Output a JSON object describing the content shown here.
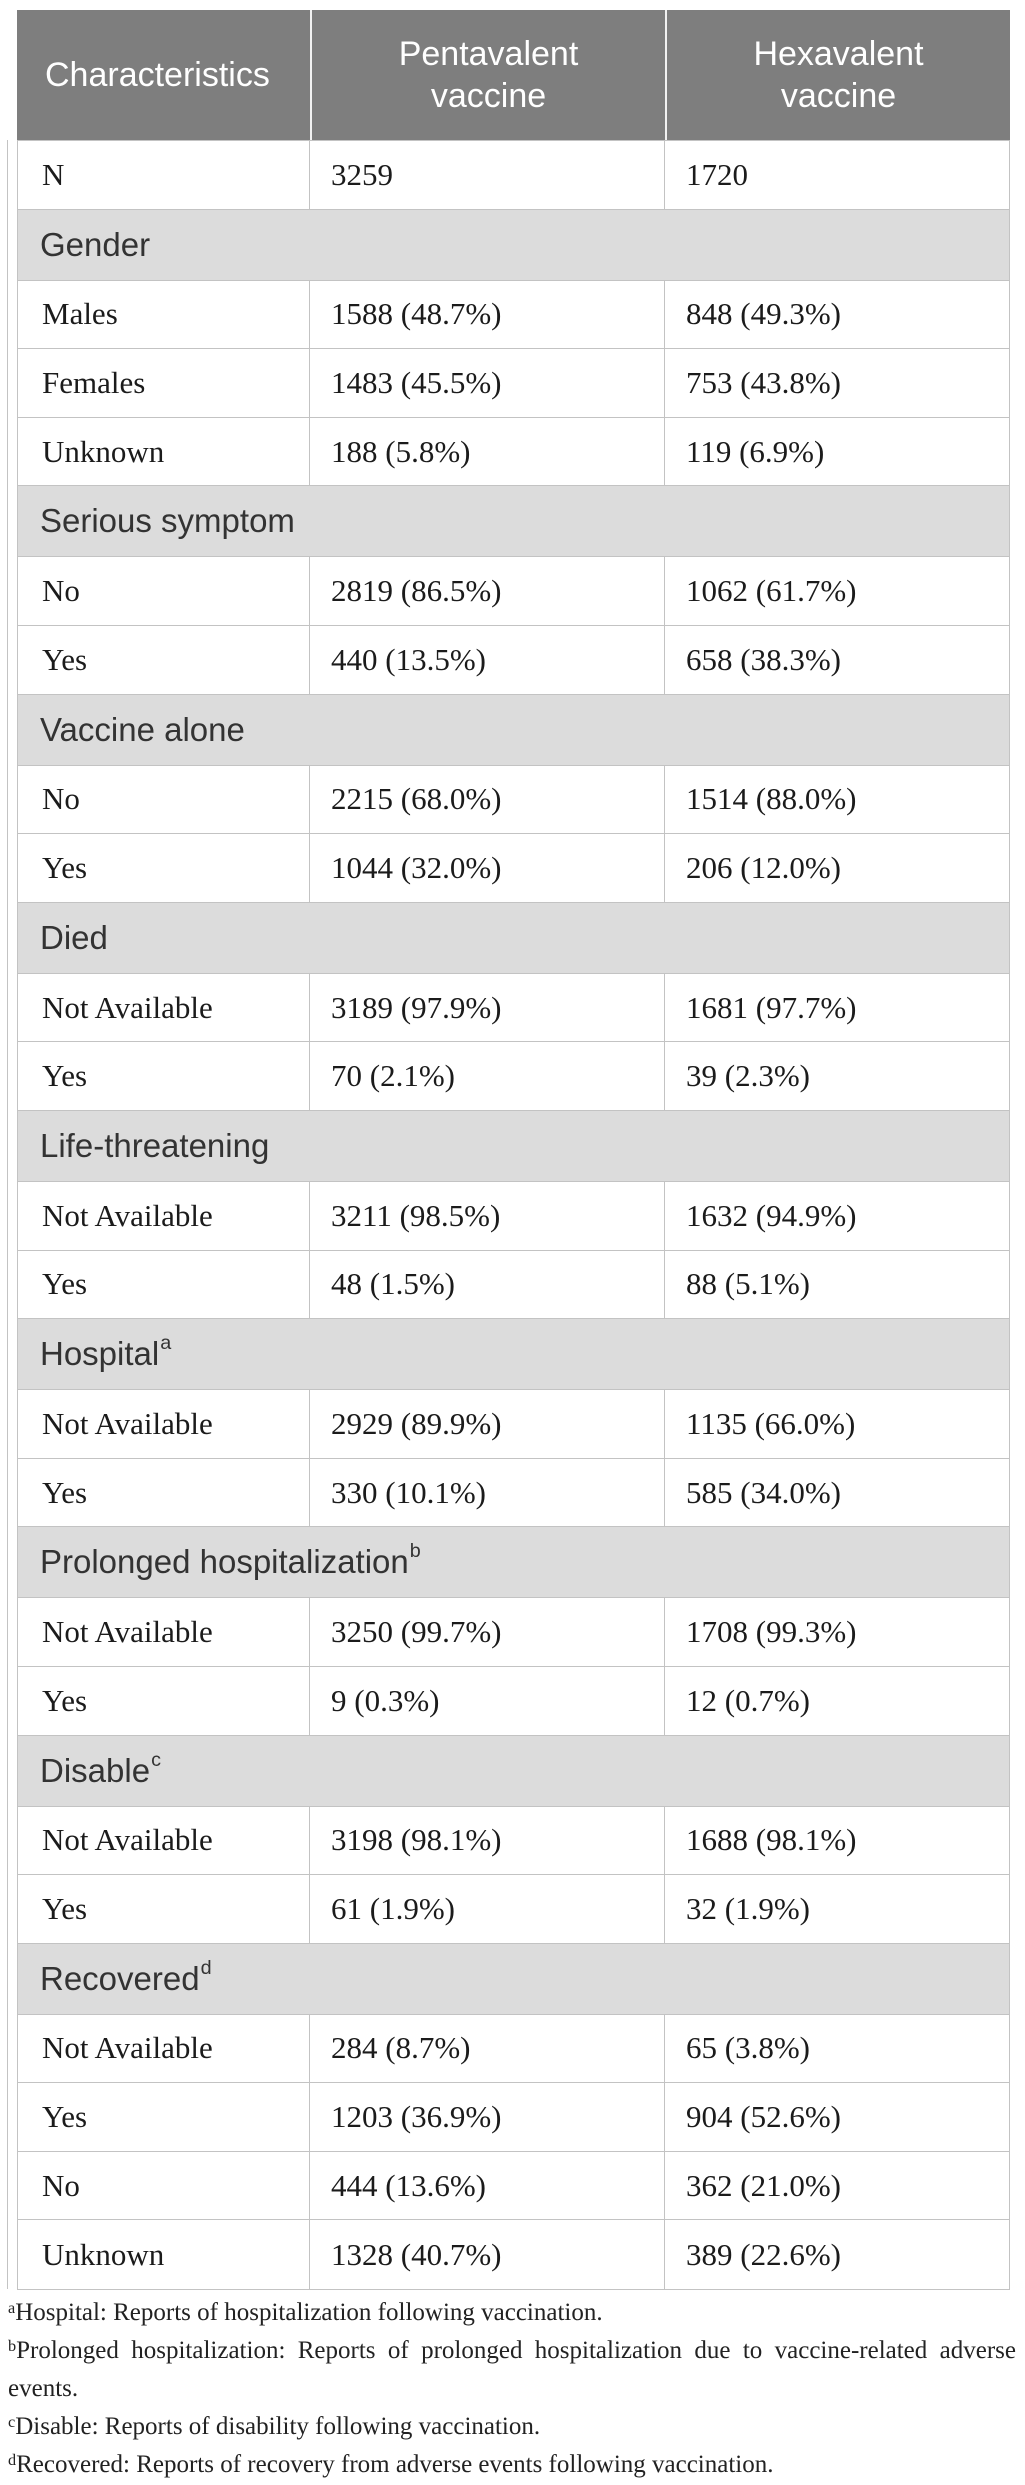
{
  "colors": {
    "header_bg": "#7e7e7e",
    "header_text": "#ffffff",
    "section_bg": "#dcdcdc",
    "border": "#c3c3c3",
    "body_text": "#1b1b1b"
  },
  "table": {
    "columns": [
      "Characteristics",
      "Pentavalent vaccine",
      "Hexavalent vaccine"
    ],
    "groups": [
      {
        "section": null,
        "rows": [
          [
            "N",
            "3259",
            "1720"
          ]
        ]
      },
      {
        "section": {
          "label": "Gender",
          "sup": ""
        },
        "rows": [
          [
            "Males",
            "1588 (48.7%)",
            "848 (49.3%)"
          ],
          [
            "Females",
            "1483 (45.5%)",
            "753 (43.8%)"
          ],
          [
            "Unknown",
            "188 (5.8%)",
            "119 (6.9%)"
          ]
        ]
      },
      {
        "section": {
          "label": "Serious symptom",
          "sup": ""
        },
        "rows": [
          [
            "No",
            "2819 (86.5%)",
            "1062 (61.7%)"
          ],
          [
            "Yes",
            "440 (13.5%)",
            "658 (38.3%)"
          ]
        ]
      },
      {
        "section": {
          "label": "Vaccine alone",
          "sup": ""
        },
        "rows": [
          [
            "No",
            "2215 (68.0%)",
            "1514 (88.0%)"
          ],
          [
            "Yes",
            "1044 (32.0%)",
            "206 (12.0%)"
          ]
        ]
      },
      {
        "section": {
          "label": "Died",
          "sup": ""
        },
        "rows": [
          [
            "Not Available",
            "3189 (97.9%)",
            "1681 (97.7%)"
          ],
          [
            "Yes",
            "70 (2.1%)",
            "39 (2.3%)"
          ]
        ]
      },
      {
        "section": {
          "label": "Life-threatening",
          "sup": ""
        },
        "rows": [
          [
            "Not Available",
            "3211 (98.5%)",
            "1632 (94.9%)"
          ],
          [
            "Yes",
            "48 (1.5%)",
            "88 (5.1%)"
          ]
        ]
      },
      {
        "section": {
          "label": "Hospital",
          "sup": "a"
        },
        "rows": [
          [
            "Not Available",
            "2929 (89.9%)",
            "1135 (66.0%)"
          ],
          [
            "Yes",
            "330 (10.1%)",
            "585 (34.0%)"
          ]
        ]
      },
      {
        "section": {
          "label": "Prolonged hospitalization",
          "sup": "b"
        },
        "rows": [
          [
            "Not Available",
            "3250 (99.7%)",
            "1708 (99.3%)"
          ],
          [
            "Yes",
            "9 (0.3%)",
            "12 (0.7%)"
          ]
        ]
      },
      {
        "section": {
          "label": "Disable",
          "sup": "c"
        },
        "rows": [
          [
            "Not Available",
            "3198 (98.1%)",
            "1688 (98.1%)"
          ],
          [
            "Yes",
            "61 (1.9%)",
            "32 (1.9%)"
          ]
        ]
      },
      {
        "section": {
          "label": "Recovered",
          "sup": "d"
        },
        "rows": [
          [
            "Not Available",
            "284 (8.7%)",
            "65 (3.8%)"
          ],
          [
            "Yes",
            "1203 (36.9%)",
            "904 (52.6%)"
          ],
          [
            "No",
            "444 (13.6%)",
            "362 (21.0%)"
          ],
          [
            "Unknown",
            "1328 (40.7%)",
            "389 (22.6%)"
          ]
        ]
      }
    ]
  },
  "footnotes": [
    {
      "sup": "a",
      "text": "Hospital: Reports of hospitalization following vaccination."
    },
    {
      "sup": "b",
      "text": "Prolonged hospitalization: Reports of prolonged hospitalization due to vaccine-related adverse events."
    },
    {
      "sup": "c",
      "text": "Disable: Reports of disability following vaccination."
    },
    {
      "sup": "d",
      "text": "Recovered: Reports of recovery from adverse events following vaccination."
    }
  ]
}
